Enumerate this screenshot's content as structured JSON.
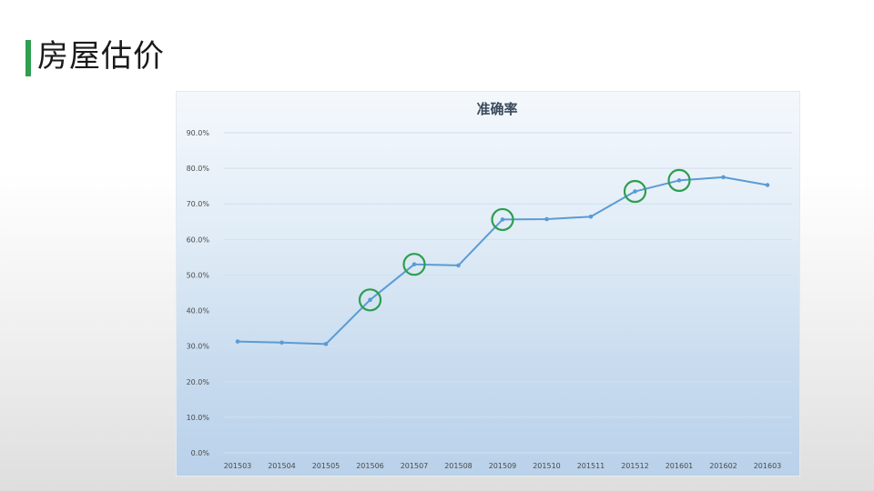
{
  "slide": {
    "title": "房屋估价"
  },
  "colors": {
    "accent_bar": "#2e9e4f",
    "line": "#5b9bd5",
    "highlight_circle": "#2e9e4f"
  },
  "chart_data": {
    "type": "line",
    "title": "准确率",
    "xlabel": "",
    "ylabel": "",
    "categories": [
      "201503",
      "201504",
      "201505",
      "201506",
      "201507",
      "201508",
      "201509",
      "201510",
      "201511",
      "201512",
      "201601",
      "201602",
      "201603"
    ],
    "series": [
      {
        "values": [
          31.3,
          31.0,
          30.6,
          43.0,
          53.0,
          52.7,
          65.6,
          65.7,
          66.4,
          73.5,
          76.6,
          77.5,
          75.3
        ]
      }
    ],
    "y_tick_labels": [
      "0.0%",
      "10.0%",
      "20.0%",
      "30.0%",
      "40.0%",
      "50.0%",
      "60.0%",
      "70.0%",
      "80.0%",
      "90.0%"
    ],
    "ylim": [
      0,
      90
    ],
    "grid": true,
    "highlighted_categories": [
      "201506",
      "201507",
      "201509",
      "201512",
      "201601"
    ]
  }
}
